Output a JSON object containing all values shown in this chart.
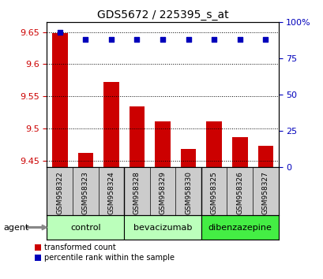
{
  "title": "GDS5672 / 225395_s_at",
  "samples": [
    "GSM958322",
    "GSM958323",
    "GSM958324",
    "GSM958328",
    "GSM958329",
    "GSM958330",
    "GSM958325",
    "GSM958326",
    "GSM958327"
  ],
  "bar_values": [
    9.648,
    9.462,
    9.572,
    9.535,
    9.511,
    9.468,
    9.511,
    9.487,
    9.473
  ],
  "percentile_values": [
    93,
    88,
    88,
    88,
    88,
    88,
    88,
    88,
    88
  ],
  "ylim_left": [
    9.44,
    9.665
  ],
  "ylim_right": [
    0,
    100
  ],
  "yticks_left": [
    9.45,
    9.5,
    9.55,
    9.6,
    9.65
  ],
  "ytick_labels_left": [
    "9.45",
    "9.5",
    "9.55",
    "9.6",
    "9.65"
  ],
  "yticks_right": [
    0,
    25,
    50,
    75,
    100
  ],
  "ytick_labels_right": [
    "0",
    "25",
    "50",
    "75",
    "100%"
  ],
  "bar_color": "#cc0000",
  "dot_color": "#0000bb",
  "bar_bottom": 9.44,
  "bar_width": 0.6,
  "legend_labels": [
    "transformed count",
    "percentile rank within the sample"
  ],
  "agent_label": "agent",
  "background_color": "#ffffff",
  "plot_bg_color": "#ffffff",
  "tick_label_color_left": "#cc0000",
  "tick_label_color_right": "#0000bb",
  "dotted_line_color": "#000000",
  "sample_bg_color": "#cccccc",
  "group_colors": [
    "#bbffbb",
    "#bbffbb",
    "#44ee44"
  ],
  "group_labels": [
    "control",
    "bevacizumab",
    "dibenzazepine"
  ],
  "group_starts": [
    0,
    3,
    6
  ],
  "group_ends": [
    2,
    5,
    8
  ]
}
